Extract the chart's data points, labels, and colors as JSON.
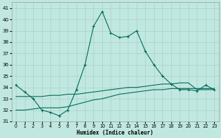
{
  "xlabel": "Humidex (Indice chaleur)",
  "ylabel": "",
  "background_color": "#c0e8e0",
  "grid_color": "#a8d0c8",
  "line_color": "#006858",
  "xlim": [
    -0.5,
    23.5
  ],
  "ylim": [
    31,
    41.5
  ],
  "yticks": [
    31,
    32,
    33,
    34,
    35,
    36,
    37,
    38,
    39,
    40,
    41
  ],
  "xticks": [
    0,
    1,
    2,
    3,
    4,
    5,
    6,
    7,
    8,
    9,
    10,
    11,
    12,
    13,
    14,
    15,
    16,
    17,
    18,
    19,
    20,
    21,
    22,
    23
  ],
  "curve1_x": [
    0,
    1,
    2,
    3,
    4,
    5,
    6,
    7,
    8,
    9,
    10,
    11,
    12,
    13,
    14,
    15,
    16,
    17,
    18,
    19,
    20,
    21,
    22,
    23
  ],
  "curve1_y": [
    34.2,
    33.6,
    33.0,
    32.0,
    31.8,
    31.5,
    32.0,
    33.8,
    36.0,
    39.4,
    40.7,
    38.8,
    38.4,
    38.5,
    39.0,
    37.2,
    36.0,
    35.0,
    34.3,
    33.8,
    33.8,
    33.7,
    34.2,
    33.8
  ],
  "curve2_x": [
    0,
    1,
    2,
    3,
    4,
    5,
    6,
    7,
    8,
    9,
    10,
    11,
    12,
    13,
    14,
    15,
    16,
    17,
    18,
    19,
    20,
    21,
    22,
    23
  ],
  "curve2_y": [
    33.2,
    33.2,
    33.2,
    33.2,
    33.3,
    33.3,
    33.4,
    33.4,
    33.5,
    33.6,
    33.7,
    33.8,
    33.9,
    34.0,
    34.0,
    34.1,
    34.2,
    34.3,
    34.3,
    34.4,
    34.4,
    33.8,
    33.8,
    33.8
  ],
  "curve3_x": [
    0,
    1,
    2,
    3,
    4,
    5,
    6,
    7,
    8,
    9,
    10,
    11,
    12,
    13,
    14,
    15,
    16,
    17,
    18,
    19,
    20,
    21,
    22,
    23
  ],
  "curve3_y": [
    32.0,
    32.0,
    32.1,
    32.2,
    32.2,
    32.2,
    32.3,
    32.5,
    32.7,
    32.9,
    33.0,
    33.2,
    33.4,
    33.5,
    33.6,
    33.7,
    33.8,
    33.8,
    33.9,
    33.9,
    33.9,
    33.9,
    33.9,
    33.9
  ]
}
